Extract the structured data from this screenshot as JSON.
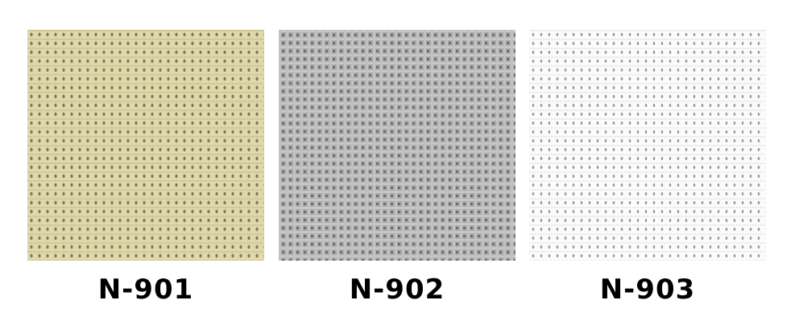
{
  "swatches": [
    {
      "code": "N-901",
      "base_color": "#ded6a8",
      "dot_color": "#7f7a5c"
    },
    {
      "code": "N-902",
      "base_color": "#a8a8a8",
      "dot_color": "#6e6e6e"
    },
    {
      "code": "N-903",
      "base_color": "#fbfbfb",
      "dot_color": "#9a9a9a"
    }
  ]
}
